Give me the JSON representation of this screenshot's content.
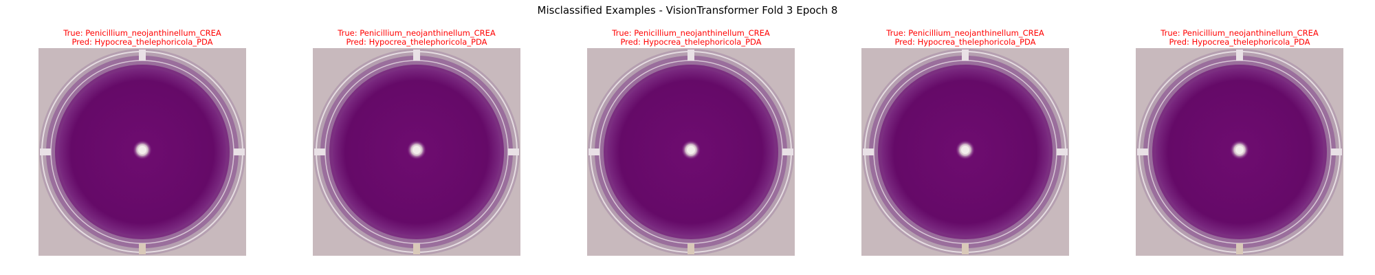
{
  "figure": {
    "title": "Misclassified Examples - VisionTransformer Fold 3 Epoch 8"
  },
  "colors": {
    "caption_text": "#ff0000",
    "agar_purple": "#6a0a6a",
    "plate_rim": "#a88aa6",
    "background_table": "#c8b9bd"
  },
  "panels": [
    {
      "true_label": "True: Penicillium_neojanthinellum_CREA",
      "pred_label": "Pred: Hypocrea_thelephoricola_PDA"
    },
    {
      "true_label": "True: Penicillium_neojanthinellum_CREA",
      "pred_label": "Pred: Hypocrea_thelephoricola_PDA"
    },
    {
      "true_label": "True: Penicillium_neojanthinellum_CREA",
      "pred_label": "Pred: Hypocrea_thelephoricola_PDA"
    },
    {
      "true_label": "True: Penicillium_neojanthinellum_CREA",
      "pred_label": "Pred: Hypocrea_thelephoricola_PDA"
    },
    {
      "true_label": "True: Penicillium_neojanthinellum_CREA",
      "pred_label": "Pred: Hypocrea_thelephoricola_PDA"
    }
  ]
}
